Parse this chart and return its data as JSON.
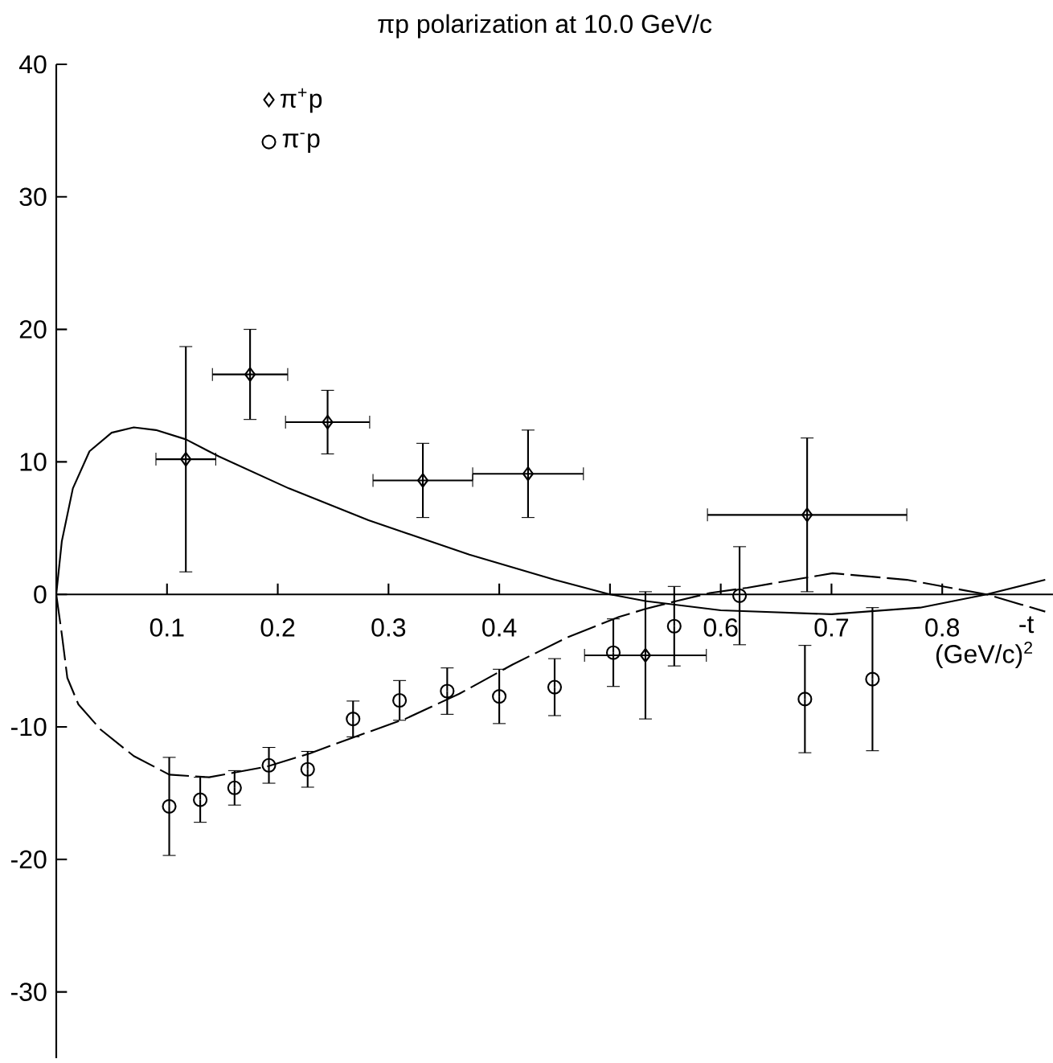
{
  "chart_data": {
    "type": "scatter",
    "title": "πp polarization at 10.0 GeV/c",
    "xlabel": "-t (GeV/c)$^{2}$",
    "xlim": [
      0,
      0.9
    ],
    "ylim": [
      -35,
      40
    ],
    "xticks": [
      0.1,
      0.2,
      0.3,
      0.4,
      {
        "value": 0.5,
        "label": null
      },
      0.6,
      0.7,
      0.8
    ],
    "yticks": [
      40,
      30,
      20,
      10,
      0,
      -10,
      -20,
      -30
    ],
    "legend": "top left",
    "series": [
      {
        "name": "π$^{+}$p",
        "marker": "diamond",
        "color": "#000000",
        "x": [
          0.117,
          0.175,
          0.245,
          0.331,
          0.426,
          0.532,
          0.678
        ],
        "values": [
          10.2,
          16.6,
          13.0,
          8.6,
          9.1,
          -4.6,
          6.0
        ],
        "errors": [
          8.5,
          3.4,
          2.4,
          2.8,
          3.3,
          4.8,
          5.8
        ],
        "xerrors": [
          0.027,
          0.034,
          0.038,
          0.045,
          0.05,
          0.055,
          0.09
        ]
      },
      {
        "name": "π$^{-}$p",
        "marker": "circle",
        "color": "#000000",
        "x": [
          0.102,
          0.13,
          0.161,
          0.192,
          0.227,
          0.268,
          0.31,
          0.353,
          0.4,
          0.45,
          0.503,
          0.558,
          0.617,
          0.676,
          0.737
        ],
        "values": [
          -16.0,
          -15.5,
          -14.6,
          -12.9,
          -13.2,
          -9.4,
          -8.0,
          -7.3,
          -7.7,
          -7.0,
          -4.4,
          -2.4,
          -0.1,
          -7.9,
          -6.4
        ],
        "errors": [
          3.7,
          1.7,
          1.3,
          1.35,
          1.35,
          1.35,
          1.5,
          1.75,
          2.05,
          2.15,
          2.55,
          3.0,
          3.7,
          4.05,
          5.4
        ]
      },
      {
        "type": "line",
        "marker": "none",
        "color": "#000000",
        "x": [
          0,
          0.005,
          0.015,
          0.03,
          0.05,
          0.07,
          0.09,
          0.117,
          0.147,
          0.21,
          0.282,
          0.373,
          0.45,
          0.5,
          0.532,
          0.6,
          0.7,
          0.78,
          0.84,
          0.893
        ],
        "values": [
          0,
          4,
          8,
          10.8,
          12.2,
          12.6,
          12.4,
          11.7,
          10.4,
          8.0,
          5.6,
          3.0,
          1.1,
          0,
          -0.5,
          -1.2,
          -1.5,
          -1.0,
          0,
          1.1
        ]
      },
      {
        "type": "line",
        "marker": "none",
        "line_style": "dashed",
        "color": "#000000",
        "x": [
          0,
          0.005,
          0.01,
          0.02,
          0.04,
          0.07,
          0.102,
          0.138,
          0.19,
          0.229,
          0.268,
          0.315,
          0.364,
          0.412,
          0.46,
          0.508,
          0.532,
          0.56,
          0.59,
          0.624,
          0.701,
          0.768,
          0.84,
          0.893
        ],
        "values": [
          0,
          -3,
          -6.3,
          -8.3,
          -10.2,
          -12.2,
          -13.6,
          -13.8,
          -13.0,
          -12.0,
          -10.8,
          -9.4,
          -7.5,
          -5.3,
          -3.3,
          -1.7,
          -1.1,
          -0.5,
          0.1,
          0.5,
          1.6,
          1.1,
          0,
          -1.3
        ]
      }
    ]
  }
}
